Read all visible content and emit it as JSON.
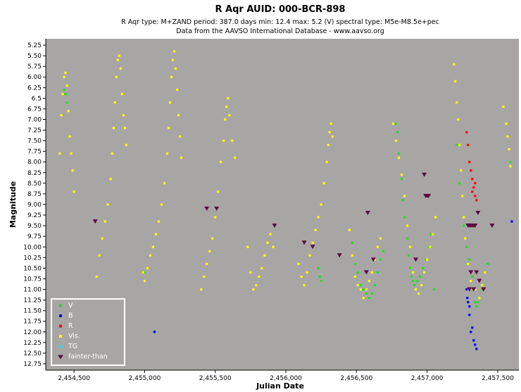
{
  "chart_data": {
    "type": "scatter",
    "title": "R Aqr   AUID: 000-BCR-898",
    "subtitle": "R Aqr   type: M+ZAND   period: 387.0 days   min: 12.4   max: 5.2 (V)   spectral type: M5e-M8.5e+pec",
    "source": "Data from the AAVSO International Database - www.aavso.org",
    "xlabel": "Julian Date",
    "ylabel": "Magnitude",
    "xlim": [
      2454300,
      2457650
    ],
    "ylim": [
      12.9,
      5.1
    ],
    "y_inverted": true,
    "xticks": [
      "2,454,500",
      "2,455,000",
      "2,455,500",
      "2,456,000",
      "2,456,500",
      "2,457,000",
      "2,457,500"
    ],
    "xtick_values": [
      2454500,
      2455000,
      2455500,
      2456000,
      2456500,
      2457000,
      2457500
    ],
    "yticks": [
      "5.25",
      "5.50",
      "5.75",
      "6.00",
      "6.25",
      "6.5",
      "6.75",
      "7.00",
      "7.25",
      "7.50",
      "7.75",
      "8.00",
      "8.25",
      "8.50",
      "8.75",
      "9.00",
      "9.25",
      "9.50",
      "9.75",
      "10.00",
      "10.25",
      "10.50",
      "10.75",
      "11.00",
      "11.25",
      "11.50",
      "11.75",
      "12.00",
      "12.25",
      "12.50",
      "12.75"
    ],
    "ytick_values": [
      5.25,
      5.5,
      5.75,
      6.0,
      6.25,
      6.5,
      6.75,
      7.0,
      7.25,
      7.5,
      7.75,
      8.0,
      8.25,
      8.5,
      8.75,
      9.0,
      9.25,
      9.5,
      9.75,
      10.0,
      10.25,
      10.5,
      10.75,
      11.0,
      11.25,
      11.5,
      11.75,
      12.0,
      12.25,
      12.5,
      12.75
    ],
    "grid": false,
    "background": "#a8a6a4",
    "legend_position": "bottom-left",
    "series": [
      {
        "name": "V",
        "color": "#22dd22",
        "marker": "square",
        "points": [
          [
            2454430,
            6.3
          ],
          [
            2454440,
            6.4
          ],
          [
            2454450,
            6.6
          ],
          [
            2455000,
            10.6
          ],
          [
            2456230,
            10.5
          ],
          [
            2456240,
            10.7
          ],
          [
            2456250,
            10.8
          ],
          [
            2456470,
            9.9
          ],
          [
            2456490,
            10.4
          ],
          [
            2456510,
            10.6
          ],
          [
            2456530,
            10.9
          ],
          [
            2456550,
            11.0
          ],
          [
            2456570,
            11.1
          ],
          [
            2456590,
            11.2
          ],
          [
            2456610,
            11.1
          ],
          [
            2456630,
            10.9
          ],
          [
            2456650,
            10.6
          ],
          [
            2456670,
            10.3
          ],
          [
            2456690,
            10.1
          ],
          [
            2456780,
            7.1
          ],
          [
            2456790,
            7.3
          ],
          [
            2456800,
            7.8
          ],
          [
            2456820,
            8.4
          ],
          [
            2456830,
            8.9
          ],
          [
            2456840,
            9.3
          ],
          [
            2456860,
            9.8
          ],
          [
            2456870,
            10.2
          ],
          [
            2456880,
            10.5
          ],
          [
            2456890,
            10.7
          ],
          [
            2456900,
            10.8
          ],
          [
            2456910,
            10.9
          ],
          [
            2456930,
            10.8
          ],
          [
            2456950,
            10.7
          ],
          [
            2456970,
            10.5
          ],
          [
            2456990,
            10.3
          ],
          [
            2457010,
            10.0
          ],
          [
            2457030,
            9.7
          ],
          [
            2457050,
            11.0
          ],
          [
            2457210,
            7.6
          ],
          [
            2457230,
            8.5
          ],
          [
            2457260,
            9.5
          ],
          [
            2457280,
            10.0
          ],
          [
            2457300,
            10.3
          ],
          [
            2457320,
            10.7
          ],
          [
            2457330,
            11.0
          ],
          [
            2457340,
            11.3
          ],
          [
            2457350,
            11.4
          ],
          [
            2457360,
            11.3
          ],
          [
            2457370,
            11.2
          ],
          [
            2457390,
            11.0
          ],
          [
            2457410,
            10.6
          ],
          [
            2457430,
            10.4
          ],
          [
            2457590,
            8.0
          ]
        ]
      },
      {
        "name": "B",
        "color": "#0000ff",
        "marker": "square",
        "points": [
          [
            2455070,
            12.0
          ],
          [
            2457280,
            11.0
          ],
          [
            2457290,
            11.3
          ],
          [
            2457300,
            11.6
          ],
          [
            2457310,
            12.0
          ],
          [
            2457330,
            12.2
          ],
          [
            2457340,
            12.3
          ],
          [
            2457350,
            12.4
          ],
          [
            2457320,
            11.9
          ],
          [
            2457300,
            11.4
          ],
          [
            2457285,
            11.2
          ],
          [
            2457600,
            9.4
          ]
        ]
      },
      {
        "name": "R",
        "color": "#ff0000",
        "marker": "square",
        "points": [
          [
            2457280,
            7.3
          ],
          [
            2457290,
            7.6
          ],
          [
            2457300,
            8.0
          ],
          [
            2457310,
            8.2
          ],
          [
            2457320,
            8.4
          ],
          [
            2457330,
            8.6
          ],
          [
            2457340,
            8.8
          ],
          [
            2457350,
            8.9
          ],
          [
            2457320,
            8.7
          ],
          [
            2457340,
            8.5
          ]
        ]
      },
      {
        "name": "Vis.",
        "color": "#ffff00",
        "marker": "square",
        "points": [
          [
            2454400,
            7.8
          ],
          [
            2454410,
            6.9
          ],
          [
            2454420,
            6.4
          ],
          [
            2454430,
            6.0
          ],
          [
            2454440,
            5.9
          ],
          [
            2454450,
            6.2
          ],
          [
            2454460,
            6.8
          ],
          [
            2454470,
            7.4
          ],
          [
            2454480,
            7.8
          ],
          [
            2454490,
            8.2
          ],
          [
            2454500,
            8.7
          ],
          [
            2454660,
            10.7
          ],
          [
            2454680,
            10.2
          ],
          [
            2454700,
            9.8
          ],
          [
            2454720,
            9.4
          ],
          [
            2454740,
            9.0
          ],
          [
            2454760,
            8.4
          ],
          [
            2454770,
            7.8
          ],
          [
            2454780,
            7.2
          ],
          [
            2454790,
            6.6
          ],
          [
            2454800,
            6.0
          ],
          [
            2454810,
            5.6
          ],
          [
            2454820,
            5.5
          ],
          [
            2454830,
            5.8
          ],
          [
            2454840,
            6.4
          ],
          [
            2454850,
            6.9
          ],
          [
            2454860,
            7.2
          ],
          [
            2454870,
            7.6
          ],
          [
            2454990,
            10.6
          ],
          [
            2455000,
            10.8
          ],
          [
            2455020,
            10.5
          ],
          [
            2455040,
            10.2
          ],
          [
            2455060,
            10.0
          ],
          [
            2455080,
            9.7
          ],
          [
            2455100,
            9.4
          ],
          [
            2455120,
            9.0
          ],
          [
            2455140,
            8.5
          ],
          [
            2455160,
            7.8
          ],
          [
            2455170,
            7.2
          ],
          [
            2455180,
            6.6
          ],
          [
            2455190,
            6.0
          ],
          [
            2455200,
            5.6
          ],
          [
            2455210,
            5.4
          ],
          [
            2455220,
            5.8
          ],
          [
            2455230,
            6.3
          ],
          [
            2455240,
            6.9
          ],
          [
            2455250,
            7.4
          ],
          [
            2455260,
            7.9
          ],
          [
            2455400,
            11.0
          ],
          [
            2455420,
            10.7
          ],
          [
            2455440,
            10.4
          ],
          [
            2455460,
            10.1
          ],
          [
            2455480,
            9.8
          ],
          [
            2455500,
            9.3
          ],
          [
            2455520,
            8.7
          ],
          [
            2455540,
            8.0
          ],
          [
            2455560,
            7.5
          ],
          [
            2455570,
            7.0
          ],
          [
            2455580,
            6.7
          ],
          [
            2455590,
            6.5
          ],
          [
            2455600,
            6.9
          ],
          [
            2455620,
            7.5
          ],
          [
            2455640,
            7.9
          ],
          [
            2455730,
            10.0
          ],
          [
            2455750,
            10.6
          ],
          [
            2455770,
            11.0
          ],
          [
            2455790,
            10.9
          ],
          [
            2455810,
            10.7
          ],
          [
            2455830,
            10.5
          ],
          [
            2455850,
            10.2
          ],
          [
            2455870,
            9.9
          ],
          [
            2455890,
            9.7
          ],
          [
            2455910,
            10.0
          ],
          [
            2456090,
            10.4
          ],
          [
            2456110,
            10.7
          ],
          [
            2456130,
            10.9
          ],
          [
            2456150,
            10.6
          ],
          [
            2456170,
            10.2
          ],
          [
            2456190,
            9.9
          ],
          [
            2456210,
            9.6
          ],
          [
            2456230,
            9.3
          ],
          [
            2456250,
            9.0
          ],
          [
            2456270,
            8.5
          ],
          [
            2456290,
            8.0
          ],
          [
            2456300,
            7.6
          ],
          [
            2456310,
            7.3
          ],
          [
            2456320,
            7.1
          ],
          [
            2456330,
            7.4
          ],
          [
            2456450,
            9.6
          ],
          [
            2456470,
            10.2
          ],
          [
            2456490,
            10.7
          ],
          [
            2456510,
            10.9
          ],
          [
            2456530,
            11.0
          ],
          [
            2456550,
            11.2
          ],
          [
            2456570,
            11.0
          ],
          [
            2456590,
            10.8
          ],
          [
            2456610,
            10.6
          ],
          [
            2456630,
            10.3
          ],
          [
            2456650,
            10.0
          ],
          [
            2456670,
            9.8
          ],
          [
            2456760,
            7.1
          ],
          [
            2456780,
            7.5
          ],
          [
            2456800,
            7.9
          ],
          [
            2456820,
            8.3
          ],
          [
            2456840,
            8.8
          ],
          [
            2456860,
            9.5
          ],
          [
            2456880,
            10.0
          ],
          [
            2456900,
            10.6
          ],
          [
            2456920,
            11.0
          ],
          [
            2456940,
            11.1
          ],
          [
            2456960,
            10.9
          ],
          [
            2456980,
            10.6
          ],
          [
            2457000,
            10.3
          ],
          [
            2457020,
            10.0
          ],
          [
            2457040,
            9.7
          ],
          [
            2457060,
            9.3
          ],
          [
            2457190,
            5.7
          ],
          [
            2457200,
            6.1
          ],
          [
            2457210,
            6.6
          ],
          [
            2457220,
            7.0
          ],
          [
            2457230,
            7.6
          ],
          [
            2457240,
            8.2
          ],
          [
            2457250,
            8.8
          ],
          [
            2457260,
            9.3
          ],
          [
            2457270,
            9.8
          ],
          [
            2457290,
            10.4
          ],
          [
            2457310,
            10.8
          ],
          [
            2457340,
            11.0
          ],
          [
            2457370,
            11.2
          ],
          [
            2457390,
            10.9
          ],
          [
            2457410,
            10.6
          ],
          [
            2457540,
            6.7
          ],
          [
            2457560,
            7.1
          ],
          [
            2457570,
            7.4
          ],
          [
            2457580,
            7.7
          ],
          [
            2457590,
            8.1
          ]
        ]
      },
      {
        "name": "TG",
        "color": "#00e8e8",
        "marker": "square",
        "points": []
      },
      {
        "name": "fainter-than",
        "color": "#5a0a40",
        "marker": "triangle-down",
        "points": [
          [
            2454650,
            9.4
          ],
          [
            2455440,
            9.1
          ],
          [
            2455510,
            9.1
          ],
          [
            2455920,
            9.5
          ],
          [
            2456130,
            9.9
          ],
          [
            2456190,
            10.0
          ],
          [
            2456380,
            10.2
          ],
          [
            2456580,
            9.2
          ],
          [
            2456570,
            10.6
          ],
          [
            2456620,
            10.3
          ],
          [
            2456920,
            10.3
          ],
          [
            2456980,
            8.3
          ],
          [
            2456990,
            8.8
          ],
          [
            2457000,
            8.8
          ],
          [
            2457010,
            8.8
          ],
          [
            2457290,
            9.5
          ],
          [
            2457300,
            9.5
          ],
          [
            2457310,
            9.5
          ],
          [
            2457320,
            9.5
          ],
          [
            2457330,
            9.5
          ],
          [
            2457340,
            9.5
          ],
          [
            2457300,
            11.0
          ],
          [
            2457310,
            10.6
          ],
          [
            2457330,
            11.0
          ],
          [
            2457350,
            10.6
          ],
          [
            2457360,
            9.2
          ],
          [
            2457370,
            10.8
          ],
          [
            2457400,
            11.0
          ],
          [
            2457460,
            9.5
          ]
        ]
      }
    ]
  }
}
